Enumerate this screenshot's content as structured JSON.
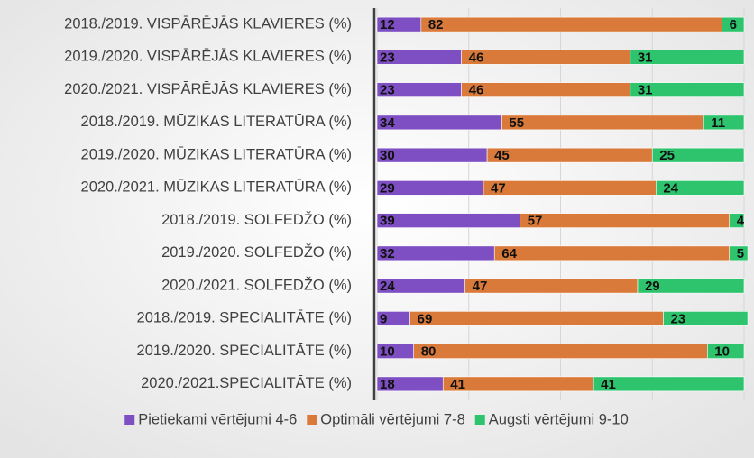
{
  "chart_data": {
    "type": "stacked_barh",
    "categories": [
      "2018./2019. VISPĀRĒJĀS KLAVIERES (%)",
      "2019./2020. VISPĀRĒJĀS KLAVIERES (%)",
      "2020./2021. VISPĀRĒJĀS KLAVIERES (%)",
      "2018./2019. MŪZIKAS LITERATŪRA (%)",
      "2019./2020. MŪZIKAS LITERATŪRA (%)",
      "2020./2021. MŪZIKAS LITERATŪRA (%)",
      "2018./2019. SOLFEDŽO (%)",
      "2019./2020. SOLFEDŽO (%)",
      "2020./2021. SOLFEDŽO (%)",
      "2018./2019. SPECIALITĀTE (%)",
      "2019./2020. SPECIALITĀTE (%)",
      "2020./2021.SPECIALITĀTE (%)"
    ],
    "series": [
      {
        "name": "Pietiekami vērtējumi 4-6",
        "color": "#7e4fc2",
        "values": [
          12,
          23,
          23,
          34,
          30,
          29,
          39,
          32,
          24,
          9,
          10,
          18
        ]
      },
      {
        "name": "Optimāli vērtējumi 7-8",
        "color": "#d97a3a",
        "values": [
          82,
          46,
          46,
          55,
          45,
          47,
          57,
          64,
          47,
          69,
          80,
          41
        ]
      },
      {
        "name": "Augsti vērtējumi 9-10",
        "color": "#2ec46e",
        "values": [
          6,
          31,
          31,
          11,
          25,
          24,
          4,
          5,
          29,
          23,
          10,
          41
        ]
      }
    ],
    "xlim": [
      0,
      100
    ],
    "xticks": [
      0,
      25,
      50,
      75,
      100
    ],
    "grid": true,
    "legend": "bottom"
  }
}
